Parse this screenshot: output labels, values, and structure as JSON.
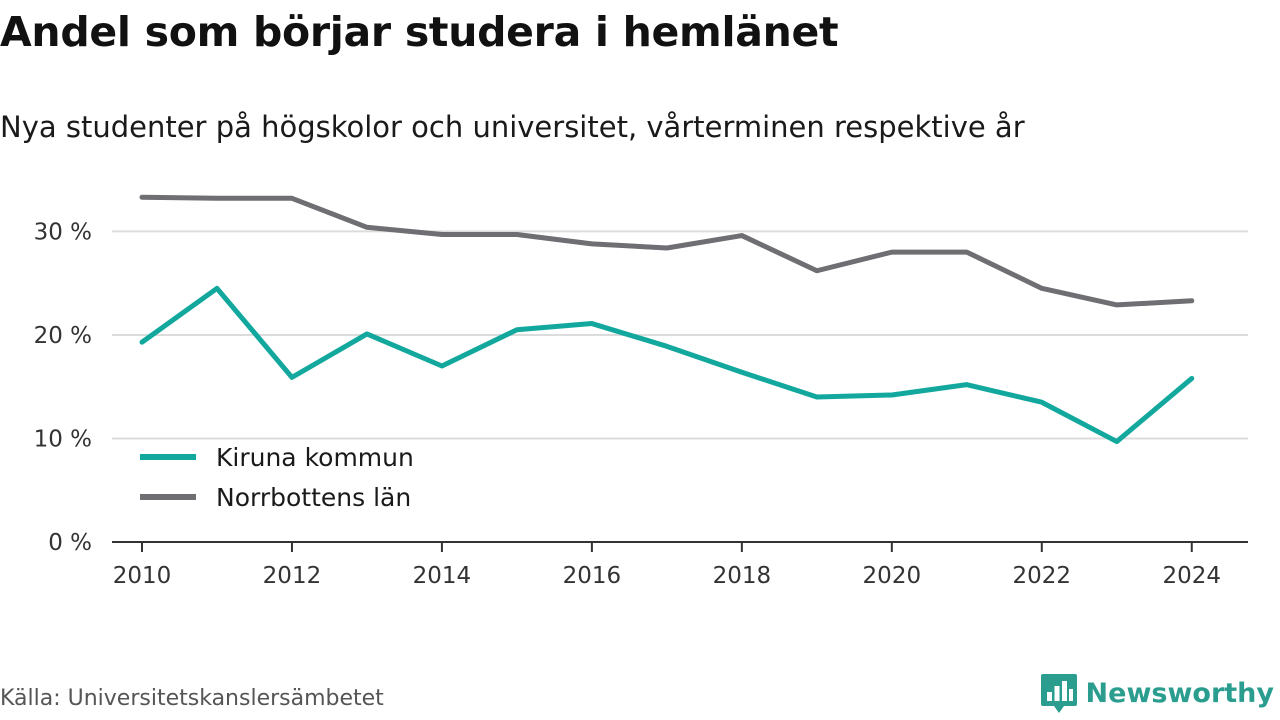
{
  "header": {
    "title": "Andel som börjar studera i hemlänet",
    "subtitle": "Nya studenter på högskolor och universitet, vårterminen respektive år"
  },
  "footer": {
    "source": "Källa: Universitetskanslersämbetet",
    "brand": "Newsworthy",
    "brand_icon": "bar-chart-logo-icon"
  },
  "colors": {
    "kiruna": "#13a89e",
    "norrbotten": "#6e6e73",
    "grid": "#dcdcdc",
    "axis": "#333333",
    "brand": "#2a9d8f"
  },
  "chart_data": {
    "type": "line",
    "x": [
      2010,
      2011,
      2012,
      2013,
      2014,
      2015,
      2016,
      2017,
      2018,
      2019,
      2020,
      2021,
      2022,
      2023,
      2024
    ],
    "x_ticks": [
      2010,
      2012,
      2014,
      2016,
      2018,
      2020,
      2022,
      2024
    ],
    "x_tick_labels": [
      "2010",
      "2012",
      "2014",
      "2016",
      "2018",
      "2020",
      "2022",
      "2024"
    ],
    "y_ticks": [
      0,
      10,
      20,
      30
    ],
    "y_tick_labels": [
      "0 %",
      "10 %",
      "20 %",
      "30 %"
    ],
    "xlim": [
      2009.6,
      2024.75
    ],
    "ylim": [
      0,
      34
    ],
    "grid": true,
    "legend_position": "bottom-left",
    "series": [
      {
        "name": "Kiruna kommun",
        "values": [
          19.3,
          24.5,
          15.9,
          20.1,
          17.0,
          20.5,
          21.1,
          18.9,
          16.4,
          14.0,
          14.2,
          15.2,
          13.5,
          9.7,
          15.8
        ]
      },
      {
        "name": "Norrbottens län",
        "values": [
          33.3,
          33.2,
          33.2,
          30.4,
          29.7,
          29.7,
          28.8,
          28.4,
          29.6,
          26.2,
          28.0,
          28.0,
          24.5,
          22.9,
          23.3
        ]
      }
    ]
  }
}
